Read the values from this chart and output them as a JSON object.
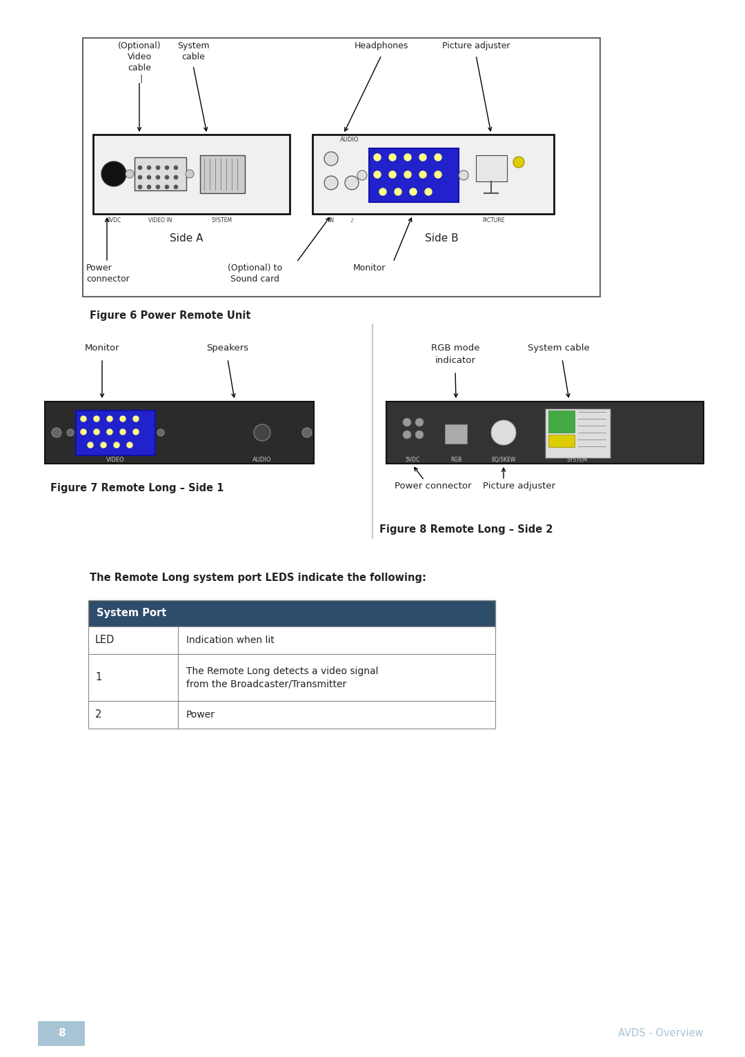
{
  "page_bg": "#ffffff",
  "page_width": 10.8,
  "page_height": 15.32,
  "footer_page_num": "8",
  "footer_text": "AVDS - Overview",
  "footer_num_bg": "#a8c4d4",
  "footer_text_color": "#a8c4d4",
  "fig6_caption": "Figure 6 Power Remote Unit",
  "fig7_caption": "Figure 7 Remote Long – Side 1",
  "fig8_caption": "Figure 8 Remote Long – Side 2",
  "table_header": "System Port",
  "table_header_bg": "#2e4d6b",
  "table_header_text": "#ffffff",
  "table_rows": [
    [
      "LED",
      "Indication when lit"
    ],
    [
      "1",
      "The Remote Long detects a video signal\nfrom the Broadcaster/Transmitter"
    ],
    [
      "2",
      "Power"
    ]
  ],
  "intro_text": "The Remote Long system port LEDS indicate the following:",
  "device1_bg": "#2b2b2b",
  "device2_bg": "#333333"
}
